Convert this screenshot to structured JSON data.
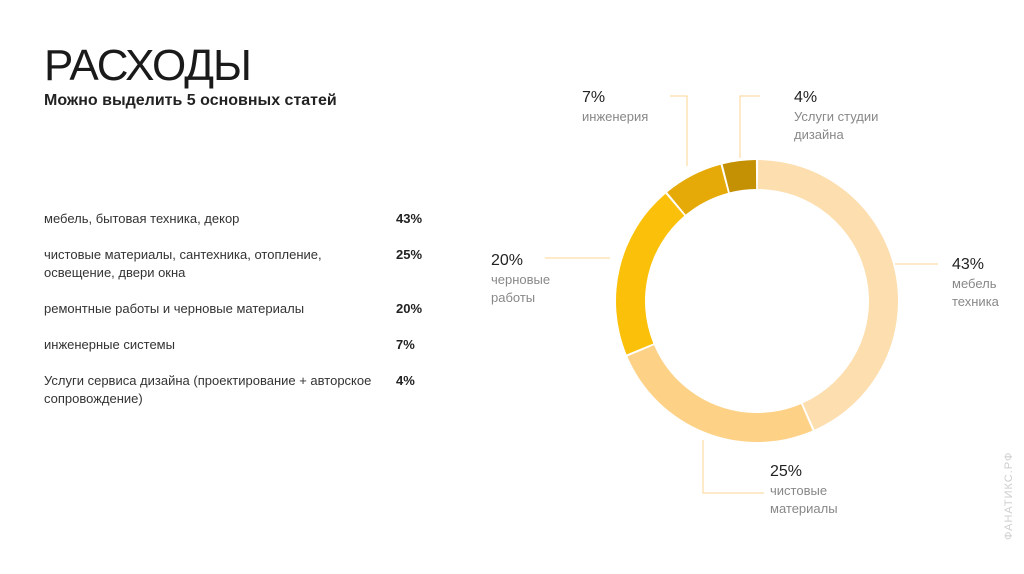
{
  "header": {
    "title": "РАСХОДЫ",
    "subtitle": "Можно выделить 5 основных статей"
  },
  "items": [
    {
      "text": "мебель, бытовая техника, декор",
      "percent": "43%"
    },
    {
      "text": "чистовые материалы, сантехника, отопление, освещение, двери окна",
      "percent": "25%"
    },
    {
      "text": "ремонтные работы и черновые материалы",
      "percent": "20%"
    },
    {
      "text": "инженерные системы",
      "percent": "7%"
    },
    {
      "text": "Услуги сервиса дизайна (проектирование + авторское сопровождение)",
      "percent": "4%"
    }
  ],
  "chart_data": {
    "type": "pie",
    "style": "donut",
    "categories": [
      "мебель техника",
      "чистовые материалы",
      "черновые работы",
      "инженерия",
      "Услуги студии дизайна"
    ],
    "values": [
      43,
      25,
      20,
      7,
      4
    ],
    "percent_labels": [
      "43%",
      "25%",
      "20%",
      "7%",
      "4%"
    ],
    "label_lines": [
      [
        "мебель",
        "техника"
      ],
      [
        "чистовые",
        "материалы"
      ],
      [
        "черновые",
        "работы"
      ],
      [
        "инженерия"
      ],
      [
        "Услуги студии",
        "дизайна"
      ]
    ],
    "colors": [
      "#FDDEAE",
      "#FDD287",
      "#FBC10A",
      "#E6AA08",
      "#C49004"
    ],
    "leader_color": "#FDD590"
  },
  "watermark": "ФАНАТИКС.РФ"
}
